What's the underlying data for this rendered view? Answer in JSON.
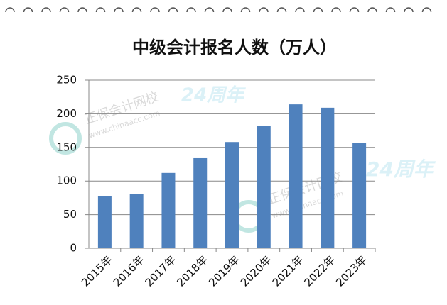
{
  "chart_data": {
    "type": "bar",
    "title": "中级会计报名人数（万人）",
    "categories": [
      "2015年",
      "2016年",
      "2017年",
      "2018年",
      "2019年",
      "2020年",
      "2021年",
      "2022年",
      "2023年"
    ],
    "values": [
      78,
      81,
      112,
      134,
      158,
      182,
      214,
      209,
      157
    ],
    "color": "#4f81bd",
    "ylim": [
      0,
      250
    ],
    "yticks": [
      0,
      50,
      100,
      150,
      200,
      250
    ],
    "grid": true
  },
  "watermark": {
    "brand": "正保会计网校",
    "site": "www.chinaacc.com",
    "anniversary": "24周年"
  }
}
